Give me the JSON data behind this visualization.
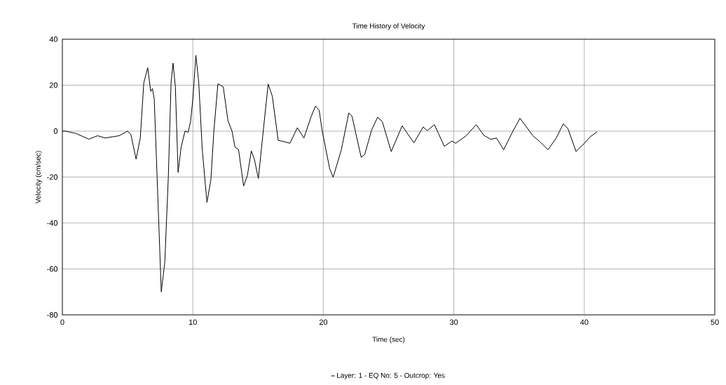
{
  "chart_data": {
    "type": "line",
    "title": "Time History of Velocity",
    "xlabel": "Time (sec)",
    "ylabel": "Velocity (cm/sec)",
    "xlim": [
      0,
      50
    ],
    "ylim": [
      -80,
      40
    ],
    "xticks": [
      0,
      10,
      20,
      30,
      40,
      50
    ],
    "yticks": [
      -80,
      -60,
      -40,
      -20,
      0,
      20,
      40
    ],
    "grid": true,
    "legend": "bottom",
    "marker": "none",
    "line_style": "solid",
    "x": [
      0,
      0.23,
      1.04,
      2.03,
      2.7,
      3.28,
      4.35,
      5.0,
      5.25,
      5.65,
      5.97,
      6.24,
      6.54,
      6.77,
      6.9,
      7.04,
      7.26,
      7.58,
      7.85,
      8.12,
      8.33,
      8.48,
      8.66,
      8.87,
      9.1,
      9.4,
      9.64,
      9.82,
      10.0,
      10.23,
      10.45,
      10.72,
      11.08,
      11.38,
      11.61,
      11.92,
      12.33,
      12.69,
      13.0,
      13.23,
      13.5,
      13.89,
      14.18,
      14.48,
      14.71,
      15.02,
      15.43,
      15.77,
      16.09,
      16.54,
      17.08,
      17.44,
      18.01,
      18.51,
      19.05,
      19.4,
      19.68,
      19.91,
      20.48,
      20.75,
      21.38,
      21.95,
      22.19,
      22.9,
      23.17,
      23.7,
      24.16,
      24.52,
      25.2,
      26.04,
      26.94,
      27.65,
      27.96,
      28.51,
      28.82,
      29.27,
      29.86,
      30.14,
      30.95,
      31.72,
      32.29,
      32.83,
      33.27,
      33.82,
      34.44,
      35.07,
      36.06,
      36.59,
      37.22,
      37.85,
      38.39,
      38.75,
      39.37,
      40.0,
      40.45,
      40.99
    ],
    "series": [
      {
        "name": "Layer:  1 - EQ No:  5 - Outcrop: Yes",
        "color": "#000000",
        "values": [
          0,
          0,
          -1,
          -3.5,
          -2,
          -3,
          -2,
          0,
          -1.5,
          -12.2,
          -3,
          21,
          27.6,
          17.3,
          18.5,
          14,
          -20,
          -70,
          -57,
          -20,
          21,
          29.6,
          19.3,
          -18,
          -7,
          0,
          -0.5,
          4,
          14,
          33,
          21.3,
          -8,
          -31,
          -21.3,
          0,
          20.6,
          19.3,
          4.6,
          0,
          -7,
          -8,
          -23.9,
          -19.3,
          -8.6,
          -12.2,
          -20.6,
          2,
          20.5,
          15.2,
          -4,
          -4.7,
          -5.3,
          1.5,
          -3,
          6.1,
          10.9,
          9.1,
          0.2,
          -16.2,
          -20.1,
          -8.1,
          7.9,
          6.6,
          -11.4,
          -10.2,
          0.5,
          6.1,
          4.1,
          -8.9,
          2.3,
          -5.1,
          1.8,
          0.2,
          2.8,
          -1,
          -6.6,
          -4.3,
          -5.3,
          -2,
          2.8,
          -1.8,
          -3.6,
          -3,
          -8.1,
          -1,
          5.6,
          -2,
          -4.6,
          -8.1,
          -3,
          3.2,
          1,
          -8.9,
          -5.3,
          -2.5,
          -0.2
        ]
      }
    ]
  }
}
